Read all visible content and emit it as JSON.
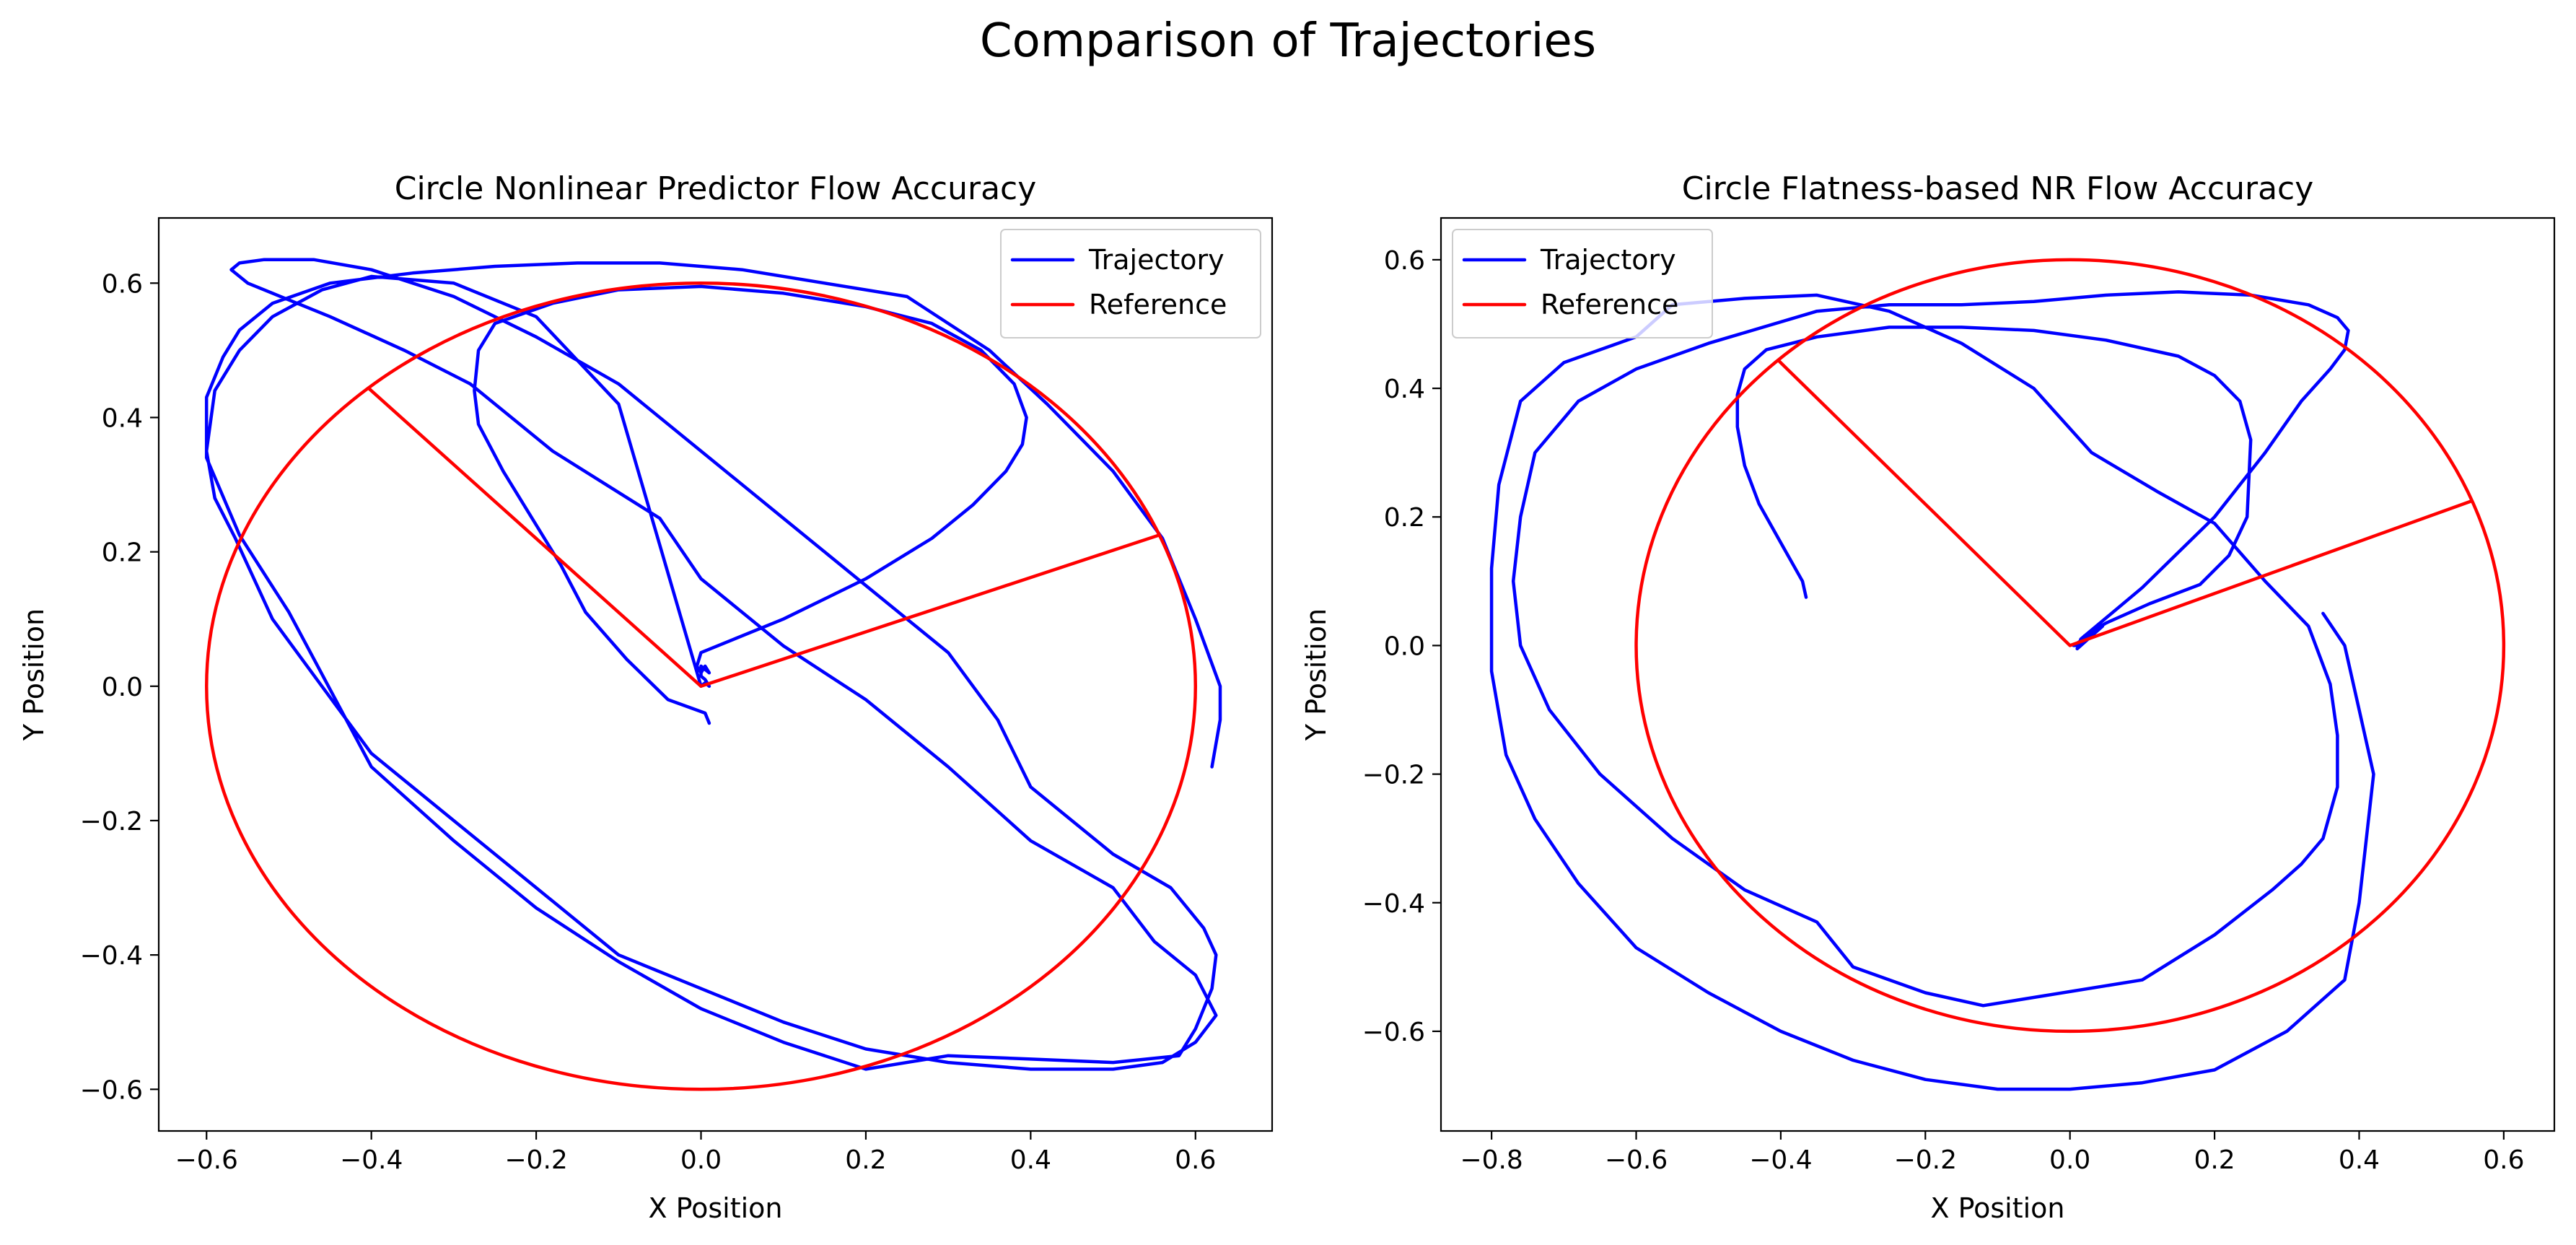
{
  "suptitle": "Comparison of Trajectories",
  "colors": {
    "trajectory": "#0000ff",
    "reference": "#ff0000",
    "frame": "#000000",
    "legend_border": "#cccccc"
  },
  "chart_data": [
    {
      "type": "line",
      "title": "Circle Nonlinear Predictor Flow Accuracy",
      "xlabel": "X Position",
      "ylabel": "Y Position",
      "xlim": [
        -0.658,
        0.693
      ],
      "ylim": [
        -0.662,
        0.697
      ],
      "xticks": [
        -0.6,
        -0.4,
        -0.2,
        0.0,
        0.2,
        0.4,
        0.6
      ],
      "xtick_labels": [
        "−0.6",
        "−0.4",
        "−0.2",
        "0.0",
        "0.2",
        "0.4",
        "0.6"
      ],
      "yticks": [
        -0.6,
        -0.4,
        -0.2,
        0.0,
        0.2,
        0.4,
        0.6
      ],
      "ytick_labels": [
        "−0.6",
        "−0.4",
        "−0.2",
        "0.0",
        "0.2",
        "0.4",
        "0.6"
      ],
      "grid": false,
      "legend_position": "top-right",
      "legend": [
        "Trajectory",
        "Reference"
      ],
      "series": [
        {
          "name": "Trajectory",
          "color": "#0000ff",
          "x": [
            0.01,
            0.005,
            -0.04,
            -0.09,
            -0.14,
            -0.17,
            -0.21,
            -0.24,
            -0.27,
            -0.275,
            -0.27,
            -0.25,
            -0.18,
            -0.1,
            0.0,
            0.1,
            0.2,
            0.28,
            0.34,
            0.38,
            0.395,
            0.39,
            0.37,
            0.33,
            0.28,
            0.2,
            0.1,
            0.0,
            -0.005,
            0.0,
            0.005,
            0.01,
            0.0,
            0.0,
            0.0,
            0.0,
            0.005,
            0.01,
            0.005,
            0.0,
            -0.1,
            -0.2,
            -0.3,
            -0.4,
            -0.46,
            -0.52,
            -0.56,
            -0.59,
            -0.6,
            -0.59,
            -0.565,
            -0.52,
            -0.46,
            -0.4,
            -0.3,
            -0.2,
            -0.1,
            0.0,
            0.1,
            0.2,
            0.3,
            0.4,
            0.5,
            0.56,
            0.6,
            0.625,
            0.6,
            0.55,
            0.5,
            0.4,
            0.3,
            0.2,
            0.1,
            0.0,
            -0.05,
            -0.18,
            -0.28,
            -0.36,
            -0.45,
            -0.51,
            -0.55,
            -0.57,
            -0.56,
            -0.53,
            -0.47,
            -0.4,
            -0.3,
            -0.2,
            -0.1,
            0.0,
            0.1,
            0.2,
            0.3,
            0.36,
            0.4,
            0.5,
            0.57,
            0.61,
            0.625,
            0.62,
            0.6,
            0.58,
            0.5,
            0.4,
            0.3,
            0.2,
            0.1,
            0.0,
            -0.1,
            -0.2,
            -0.3,
            -0.4,
            -0.5,
            -0.56,
            -0.6,
            -0.6,
            -0.58,
            -0.56,
            -0.52,
            -0.45,
            -0.35,
            -0.25,
            -0.15,
            -0.05,
            0.05,
            0.15,
            0.25,
            0.35,
            0.42,
            0.5,
            0.56,
            0.6,
            0.63,
            0.63,
            0.62
          ],
          "y": [
            -0.055,
            -0.04,
            -0.02,
            0.04,
            0.11,
            0.18,
            0.26,
            0.32,
            0.39,
            0.44,
            0.5,
            0.54,
            0.57,
            0.59,
            0.595,
            0.585,
            0.565,
            0.54,
            0.5,
            0.45,
            0.4,
            0.36,
            0.32,
            0.27,
            0.22,
            0.16,
            0.1,
            0.05,
            0.03,
            0.02,
            0.03,
            0.02,
            0.03,
            0.025,
            0.02,
            0.015,
            0.01,
            0.0,
            0.005,
            0.0,
            0.42,
            0.55,
            0.6,
            0.61,
            0.59,
            0.55,
            0.5,
            0.44,
            0.35,
            0.28,
            0.22,
            0.1,
            0.0,
            -0.1,
            -0.2,
            -0.3,
            -0.4,
            -0.45,
            -0.5,
            -0.54,
            -0.56,
            -0.57,
            -0.57,
            -0.56,
            -0.53,
            -0.49,
            -0.43,
            -0.38,
            -0.3,
            -0.23,
            -0.12,
            -0.02,
            0.06,
            0.16,
            0.25,
            0.35,
            0.45,
            0.5,
            0.55,
            0.58,
            0.6,
            0.62,
            0.63,
            0.635,
            0.635,
            0.62,
            0.58,
            0.52,
            0.45,
            0.35,
            0.25,
            0.15,
            0.05,
            -0.05,
            -0.15,
            -0.25,
            -0.3,
            -0.36,
            -0.4,
            -0.45,
            -0.51,
            -0.55,
            -0.56,
            -0.555,
            -0.55,
            -0.57,
            -0.53,
            -0.48,
            -0.41,
            -0.33,
            -0.23,
            -0.12,
            0.11,
            0.225,
            0.34,
            0.43,
            0.49,
            0.53,
            0.57,
            0.6,
            0.615,
            0.625,
            0.63,
            0.63,
            0.62,
            0.6,
            0.58,
            0.5,
            0.42,
            0.32,
            0.22,
            0.1,
            0.0,
            -0.05,
            -0.12
          ]
        },
        {
          "name": "Reference",
          "color": "#ff0000",
          "shape": "circle with two radial segments",
          "center": [
            0.0,
            0.0
          ],
          "radius": 0.6,
          "x": [
            -0.402,
            0.0,
            0.556
          ],
          "y": [
            0.442,
            0.0,
            0.225
          ]
        }
      ]
    },
    {
      "type": "line",
      "title": "Circle Flatness-based NR Flow Accuracy",
      "xlabel": "X Position",
      "ylabel": "Y Position",
      "xlim": [
        -0.87,
        0.67
      ],
      "ylim": [
        -0.755,
        0.665
      ],
      "xticks": [
        -0.8,
        -0.6,
        -0.4,
        -0.2,
        0.0,
        0.2,
        0.4,
        0.6
      ],
      "xtick_labels": [
        "−0.8",
        "−0.6",
        "−0.4",
        "−0.2",
        "0.0",
        "0.2",
        "0.4",
        "0.6"
      ],
      "yticks": [
        -0.6,
        -0.4,
        -0.2,
        0.0,
        0.2,
        0.4,
        0.6
      ],
      "ytick_labels": [
        "−0.6",
        "−0.4",
        "−0.2",
        "0.0",
        "0.2",
        "0.4",
        "0.6"
      ],
      "grid": false,
      "legend_position": "top-left",
      "legend": [
        "Trajectory",
        "Reference"
      ],
      "series": [
        {
          "name": "Trajectory",
          "color": "#0000ff",
          "x": [
            -0.365,
            -0.37,
            -0.4,
            -0.43,
            -0.45,
            -0.46,
            -0.46,
            -0.45,
            -0.42,
            -0.35,
            -0.25,
            -0.15,
            -0.05,
            0.05,
            0.15,
            0.2,
            0.235,
            0.25,
            0.245,
            0.22,
            0.18,
            0.11,
            0.05,
            0.02,
            0.01,
            0.005,
            0.045,
            0.01,
            0.015,
            0.1,
            0.2,
            0.27,
            0.32,
            0.36,
            0.38,
            0.385,
            0.37,
            0.33,
            0.25,
            0.15,
            0.05,
            -0.05,
            -0.15,
            -0.25,
            -0.35,
            -0.5,
            -0.6,
            -0.68,
            -0.74,
            -0.76,
            -0.77,
            -0.76,
            -0.72,
            -0.65,
            -0.55,
            -0.45,
            -0.35,
            -0.3,
            -0.2,
            -0.12,
            0.1,
            0.2,
            0.28,
            0.32,
            0.35,
            0.37,
            0.37,
            0.36,
            0.33,
            0.27,
            0.2,
            0.12,
            0.03,
            -0.05,
            -0.15,
            -0.25,
            -0.35,
            -0.45,
            -0.55,
            -0.6,
            -0.7,
            -0.76,
            -0.79,
            -0.8,
            -0.8,
            -0.78,
            -0.74,
            -0.68,
            -0.6,
            -0.5,
            -0.4,
            -0.3,
            -0.2,
            -0.1,
            0.0,
            0.1,
            0.2,
            0.3,
            0.38,
            0.4,
            0.41,
            0.42,
            0.4,
            0.38,
            0.35
          ],
          "y": [
            0.075,
            0.1,
            0.16,
            0.22,
            0.28,
            0.34,
            0.39,
            0.43,
            0.46,
            0.48,
            0.495,
            0.495,
            0.49,
            0.475,
            0.45,
            0.42,
            0.38,
            0.32,
            0.2,
            0.14,
            0.095,
            0.065,
            0.035,
            0.015,
            0.0,
            0.0,
            0.03,
            -0.005,
            0.01,
            0.09,
            0.2,
            0.3,
            0.38,
            0.43,
            0.46,
            0.49,
            0.51,
            0.53,
            0.545,
            0.55,
            0.545,
            0.535,
            0.53,
            0.53,
            0.52,
            0.47,
            0.43,
            0.38,
            0.3,
            0.2,
            0.1,
            0.0,
            -0.1,
            -0.2,
            -0.3,
            -0.38,
            -0.43,
            -0.5,
            -0.54,
            -0.56,
            -0.52,
            -0.45,
            -0.38,
            -0.34,
            -0.3,
            -0.22,
            -0.14,
            -0.06,
            0.03,
            0.1,
            0.19,
            0.24,
            0.3,
            0.4,
            0.47,
            0.52,
            0.545,
            0.54,
            0.53,
            0.48,
            0.44,
            0.38,
            0.25,
            0.12,
            -0.04,
            -0.17,
            -0.27,
            -0.37,
            -0.47,
            -0.54,
            -0.6,
            -0.645,
            -0.675,
            -0.69,
            -0.69,
            -0.68,
            -0.66,
            -0.6,
            -0.52,
            -0.4,
            -0.3,
            -0.2,
            -0.1,
            0.0,
            0.05
          ]
        },
        {
          "name": "Reference",
          "color": "#ff0000",
          "shape": "circle with two radial segments",
          "center": [
            0.0,
            0.0
          ],
          "radius": 0.6,
          "x": [
            -0.402,
            0.0,
            0.556
          ],
          "y": [
            0.442,
            0.0,
            0.225
          ]
        }
      ]
    }
  ]
}
